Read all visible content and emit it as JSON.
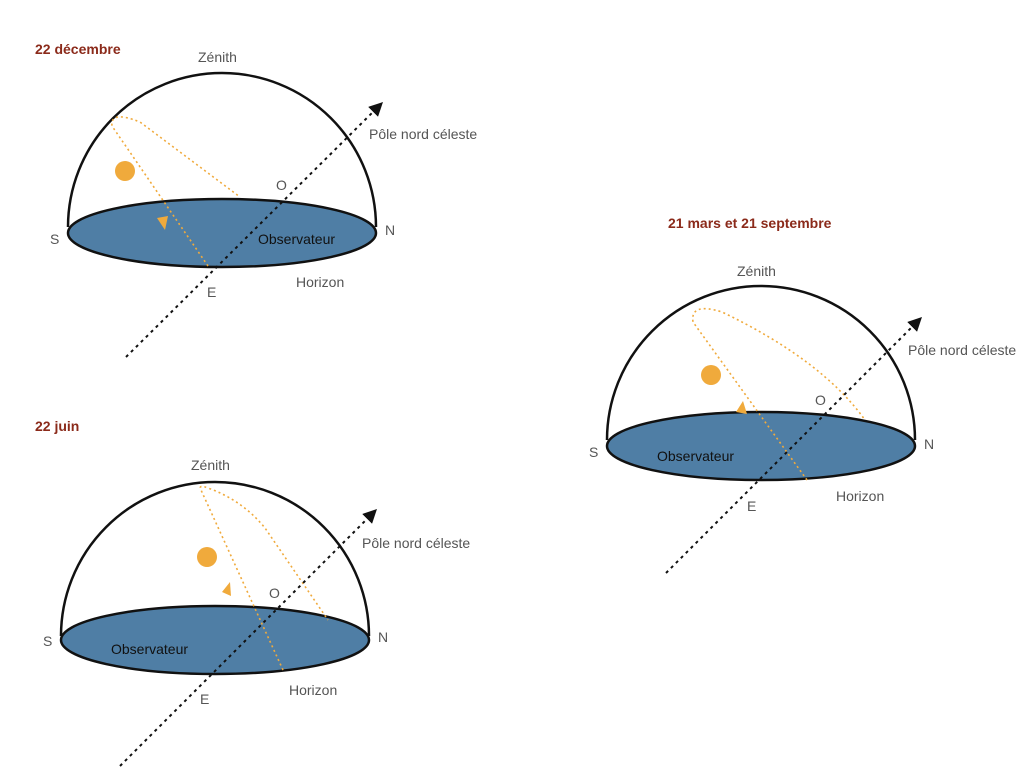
{
  "colors": {
    "title": "#8b2a1a",
    "sun": "#f0aa3c",
    "horizon_plane": "#4f7ea5",
    "outline": "#111111",
    "label": "#555555"
  },
  "labels": {
    "zenith": "Zénith",
    "pole": "Pôle nord céleste",
    "south": "S",
    "north": "N",
    "east": "E",
    "west": "O",
    "horizon": "Horizon",
    "observer": "Observateur"
  },
  "panels": [
    {
      "id": "december",
      "title": "22 décembre"
    },
    {
      "id": "june",
      "title": "22 juin"
    },
    {
      "id": "equinox",
      "title": "21 mars et 21 septembre"
    }
  ]
}
